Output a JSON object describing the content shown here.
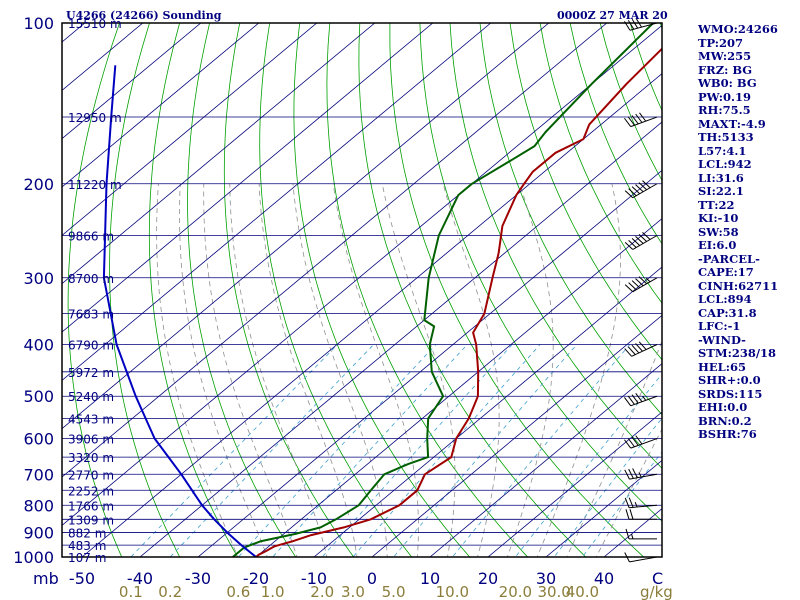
{
  "header": {
    "station": "U4266 (24266) Sounding",
    "time": "0000Z 27 MAR 20"
  },
  "chart_data": {
    "type": "line",
    "subtype": "skew-t log-p sounding",
    "pressure_axis": {
      "label": "mb",
      "ticks": [
        100,
        200,
        300,
        400,
        500,
        600,
        700,
        800,
        900,
        1000
      ],
      "range": [
        100,
        1000
      ],
      "scale": "log"
    },
    "temperature_axis": {
      "ticks": [
        -50,
        -40,
        -30,
        -20,
        -10,
        0,
        10,
        20,
        30,
        40
      ],
      "unit_label": "C"
    },
    "mixing_ratio_axis": {
      "labels": [
        "0.1",
        "0.2",
        "0.6",
        "1.0",
        "2.0",
        "3.0",
        "5.0",
        "10.0",
        "20.0",
        "30.0",
        "40.0"
      ],
      "unit_label": "g/kg"
    },
    "height_labels": [
      {
        "p": 100,
        "text": "15510 m"
      },
      {
        "p": 150,
        "text": "12950 m"
      },
      {
        "p": 200,
        "text": "11220 m"
      },
      {
        "p": 250,
        "text": "9866 m"
      },
      {
        "p": 300,
        "text": "8700 m"
      },
      {
        "p": 350,
        "text": "7683 m"
      },
      {
        "p": 400,
        "text": "6790 m"
      },
      {
        "p": 450,
        "text": "5972 m"
      },
      {
        "p": 500,
        "text": "5240 m"
      },
      {
        "p": 550,
        "text": "4543 m"
      },
      {
        "p": 600,
        "text": "3906 m"
      },
      {
        "p": 650,
        "text": "3320 m"
      },
      {
        "p": 700,
        "text": "2770 m"
      },
      {
        "p": 750,
        "text": "2252 m"
      },
      {
        "p": 800,
        "text": "1766 m"
      },
      {
        "p": 850,
        "text": "1309 m"
      },
      {
        "p": 900,
        "text": "882 m"
      },
      {
        "p": 950,
        "text": "483 m"
      },
      {
        "p": 1000,
        "text": "107 m"
      }
    ],
    "series": [
      {
        "role": "temperature",
        "color": "#a00000",
        "points": [
          {
            "p": 1000,
            "t": -20
          },
          {
            "p": 990,
            "t": -20
          },
          {
            "p": 975,
            "t": -19.5
          },
          {
            "p": 955,
            "t": -19
          },
          {
            "p": 935,
            "t": -17
          },
          {
            "p": 910,
            "t": -15
          },
          {
            "p": 880,
            "t": -11
          },
          {
            "p": 850,
            "t": -8
          },
          {
            "p": 800,
            "t": -6
          },
          {
            "p": 750,
            "t": -6
          },
          {
            "p": 700,
            "t": -8
          },
          {
            "p": 650,
            "t": -7
          },
          {
            "p": 600,
            "t": -10
          },
          {
            "p": 550,
            "t": -12
          },
          {
            "p": 500,
            "t": -15
          },
          {
            "p": 450,
            "t": -20
          },
          {
            "p": 400,
            "t": -26
          },
          {
            "p": 380,
            "t": -29
          },
          {
            "p": 350,
            "t": -31
          },
          {
            "p": 300,
            "t": -37
          },
          {
            "p": 270,
            "t": -41
          },
          {
            "p": 240,
            "t": -46
          },
          {
            "p": 210,
            "t": -50
          },
          {
            "p": 200,
            "t": -51
          },
          {
            "p": 190,
            "t": -52
          },
          {
            "p": 175,
            "t": -52
          },
          {
            "p": 165,
            "t": -50
          },
          {
            "p": 155,
            "t": -52
          },
          {
            "p": 130,
            "t": -54
          },
          {
            "p": 100,
            "t": -56
          }
        ]
      },
      {
        "role": "dewpoint",
        "color": "#006000",
        "points": [
          {
            "p": 1000,
            "t": -24
          },
          {
            "p": 985,
            "t": -24
          },
          {
            "p": 960,
            "t": -24
          },
          {
            "p": 935,
            "t": -22.5
          },
          {
            "p": 905,
            "t": -18
          },
          {
            "p": 880,
            "t": -15
          },
          {
            "p": 850,
            "t": -14
          },
          {
            "p": 800,
            "t": -13
          },
          {
            "p": 750,
            "t": -14
          },
          {
            "p": 700,
            "t": -15
          },
          {
            "p": 670,
            "t": -13
          },
          {
            "p": 650,
            "t": -11
          },
          {
            "p": 600,
            "t": -15
          },
          {
            "p": 550,
            "t": -19
          },
          {
            "p": 500,
            "t": -21
          },
          {
            "p": 450,
            "t": -28
          },
          {
            "p": 400,
            "t": -34
          },
          {
            "p": 370,
            "t": -37
          },
          {
            "p": 360,
            "t": -40
          },
          {
            "p": 300,
            "t": -48
          },
          {
            "p": 250,
            "t": -55
          },
          {
            "p": 210,
            "t": -60
          },
          {
            "p": 200,
            "t": -60
          },
          {
            "p": 180,
            "t": -58
          },
          {
            "p": 170,
            "t": -57
          },
          {
            "p": 160,
            "t": -58
          },
          {
            "p": 130,
            "t": -60
          },
          {
            "p": 100,
            "t": -62
          }
        ]
      },
      {
        "role": "parcel",
        "color": "#0000c0",
        "points": [
          {
            "p": 1000,
            "t": -20
          },
          {
            "p": 950,
            "t": -25
          },
          {
            "p": 900,
            "t": -30
          },
          {
            "p": 850,
            "t": -35
          },
          {
            "p": 800,
            "t": -40
          },
          {
            "p": 700,
            "t": -50
          },
          {
            "p": 600,
            "t": -62
          },
          {
            "p": 500,
            "t": -74
          },
          {
            "p": 400,
            "t": -88
          },
          {
            "p": 300,
            "t": -104
          },
          {
            "p": 200,
            "t": -123
          },
          {
            "p": 150,
            "t": -136
          },
          {
            "p": 120,
            "t": -146
          }
        ]
      }
    ],
    "winds": [
      {
        "p": 1000,
        "dir": 260,
        "speed": 10
      },
      {
        "p": 925,
        "dir": 270,
        "speed": 15
      },
      {
        "p": 850,
        "dir": 270,
        "speed": 20
      },
      {
        "p": 800,
        "dir": 265,
        "speed": 25
      },
      {
        "p": 700,
        "dir": 260,
        "speed": 35
      },
      {
        "p": 600,
        "dir": 250,
        "speed": 40
      },
      {
        "p": 500,
        "dir": 250,
        "speed": 45
      },
      {
        "p": 400,
        "dir": 245,
        "speed": 50
      },
      {
        "p": 300,
        "dir": 240,
        "speed": 55
      },
      {
        "p": 250,
        "dir": 240,
        "speed": 60
      },
      {
        "p": 200,
        "dir": 240,
        "speed": 60
      },
      {
        "p": 150,
        "dir": 250,
        "speed": 50
      },
      {
        "p": 100,
        "dir": 255,
        "speed": 40
      }
    ]
  },
  "indices": [
    "WMO:24266",
    "TP:207",
    "MW:255",
    "FRZ: BG",
    "WB0: BG",
    "PW:0.19",
    "RH:75.5",
    "MAXT:-4.9",
    "TH:5133",
    "L57:4.1",
    "LCL:942",
    "LI:31.6",
    "SI:22.1",
    "TT:22",
    "KI:-10",
    "SW:58",
    "EI:6.0",
    "-PARCEL-",
    "CAPE:17",
    "CINH:62711",
    "LCL:894",
    "CAP:31.8",
    "LFC:-1",
    "-WIND-",
    "STM:238/18",
    "HEL:65",
    "SHR+:0.0",
    "SRDS:115",
    "EHI:0.0",
    "BRN:0.2",
    "BSHR:76"
  ],
  "colors": {
    "frame": "#000000",
    "isobar": "#00007a",
    "isotherm": "#00007a",
    "dry_adiabat": "#00a000",
    "mixing_ratio": "#3fa0d0",
    "moist_adiabat": "#909090",
    "text": "#000080",
    "mixing_label": "#8b7d3a"
  }
}
